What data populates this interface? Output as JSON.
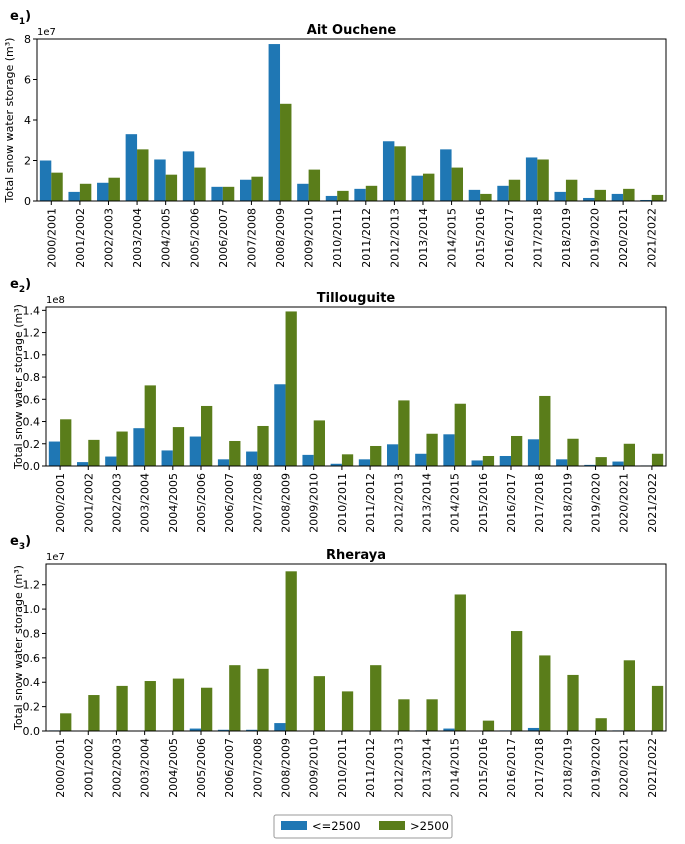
{
  "colors": {
    "low": "#1f77b4",
    "high": "#5a7d1a"
  },
  "legend": {
    "low_label": "<=2500",
    "high_label": ">2500"
  },
  "chart_data": [
    {
      "type": "bar",
      "panel_label": "e",
      "panel_sub": "1",
      "title": "Ait Ouchene",
      "ylabel": "Total snow water storage (m³)",
      "offset_text": "1e7",
      "ylim": [
        0,
        8
      ],
      "yticks": [
        0,
        2,
        4,
        6,
        8
      ],
      "ytick_labels": [
        "0",
        "2",
        "4",
        "6",
        "8"
      ],
      "categories": [
        "2000/2001",
        "2001/2002",
        "2002/2003",
        "2003/2004",
        "2004/2005",
        "2005/2006",
        "2006/2007",
        "2007/2008",
        "2008/2009",
        "2009/2010",
        "2010/2011",
        "2011/2012",
        "2012/2013",
        "2013/2014",
        "2014/2015",
        "2015/2016",
        "2016/2017",
        "2017/2018",
        "2018/2019",
        "2019/2020",
        "2020/2021",
        "2021/2022"
      ],
      "series": [
        {
          "name": "<=2500",
          "values": [
            2.0,
            0.45,
            0.9,
            3.3,
            2.05,
            2.45,
            0.7,
            1.05,
            7.75,
            0.85,
            0.25,
            0.6,
            2.95,
            1.25,
            2.55,
            0.55,
            0.75,
            2.15,
            0.45,
            0.15,
            0.35,
            0.05
          ]
        },
        {
          "name": ">2500",
          "values": [
            1.4,
            0.85,
            1.15,
            2.55,
            1.3,
            1.65,
            0.7,
            1.2,
            4.8,
            1.55,
            0.5,
            0.75,
            2.7,
            1.35,
            1.65,
            0.35,
            1.05,
            2.05,
            1.05,
            0.55,
            0.6,
            0.3
          ]
        }
      ]
    },
    {
      "type": "bar",
      "panel_label": "e",
      "panel_sub": "2",
      "title": "Tillouguite",
      "ylabel": "Total snow water storage (m³)",
      "offset_text": "1e8",
      "ylim": [
        0,
        1.43
      ],
      "yticks": [
        0,
        0.2,
        0.4,
        0.6,
        0.8,
        1.0,
        1.2,
        1.4
      ],
      "ytick_labels": [
        "0.0",
        "0.2",
        "0.4",
        "0.6",
        "0.8",
        "1.0",
        "1.2",
        "1.4"
      ],
      "categories": [
        "2000/2001",
        "2001/2002",
        "2002/2003",
        "2003/2004",
        "2004/2005",
        "2005/2006",
        "2006/2007",
        "2007/2008",
        "2008/2009",
        "2009/2010",
        "2010/2011",
        "2011/2012",
        "2012/2013",
        "2013/2014",
        "2014/2015",
        "2015/2016",
        "2016/2017",
        "2017/2018",
        "2018/2019",
        "2019/2020",
        "2020/2021",
        "2021/2022"
      ],
      "series": [
        {
          "name": "<=2500",
          "values": [
            0.22,
            0.035,
            0.085,
            0.34,
            0.14,
            0.265,
            0.06,
            0.13,
            0.735,
            0.1,
            0.02,
            0.06,
            0.195,
            0.11,
            0.285,
            0.05,
            0.09,
            0.24,
            0.06,
            0.01,
            0.04,
            0.005
          ]
        },
        {
          "name": ">2500",
          "values": [
            0.42,
            0.235,
            0.31,
            0.725,
            0.35,
            0.54,
            0.225,
            0.36,
            1.39,
            0.41,
            0.105,
            0.18,
            0.59,
            0.29,
            0.56,
            0.09,
            0.27,
            0.63,
            0.245,
            0.08,
            0.2,
            0.11
          ]
        }
      ]
    },
    {
      "type": "bar",
      "panel_label": "e",
      "panel_sub": "3",
      "title": "Rheraya",
      "ylabel": "Total snow water storage (m³)",
      "offset_text": "1e7",
      "ylim": [
        0,
        1.37
      ],
      "yticks": [
        0,
        0.2,
        0.4,
        0.6,
        0.8,
        1.0,
        1.2
      ],
      "ytick_labels": [
        "0.0",
        "0.2",
        "0.4",
        "0.6",
        "0.8",
        "1.0",
        "1.2"
      ],
      "categories": [
        "2000/2001",
        "2001/2002",
        "2002/2003",
        "2003/2004",
        "2004/2005",
        "2005/2006",
        "2006/2007",
        "2007/2008",
        "2008/2009",
        "2009/2010",
        "2010/2011",
        "2011/2012",
        "2012/2013",
        "2013/2014",
        "2014/2015",
        "2015/2016",
        "2016/2017",
        "2017/2018",
        "2018/2019",
        "2019/2020",
        "2020/2021",
        "2021/2022"
      ],
      "series": [
        {
          "name": "<=2500",
          "values": [
            0.005,
            0.0,
            0.0,
            0.0,
            0.0,
            0.02,
            0.01,
            0.01,
            0.065,
            0.0,
            0.0,
            0.0,
            0.0,
            0.005,
            0.02,
            0.0,
            0.005,
            0.025,
            0.0,
            0.0,
            0.005,
            0.0
          ]
        },
        {
          "name": ">2500",
          "values": [
            0.145,
            0.295,
            0.37,
            0.41,
            0.43,
            0.355,
            0.54,
            0.51,
            1.31,
            0.45,
            0.325,
            0.54,
            0.26,
            0.26,
            1.12,
            0.085,
            0.82,
            0.62,
            0.46,
            0.105,
            0.58,
            0.37
          ]
        }
      ]
    }
  ]
}
